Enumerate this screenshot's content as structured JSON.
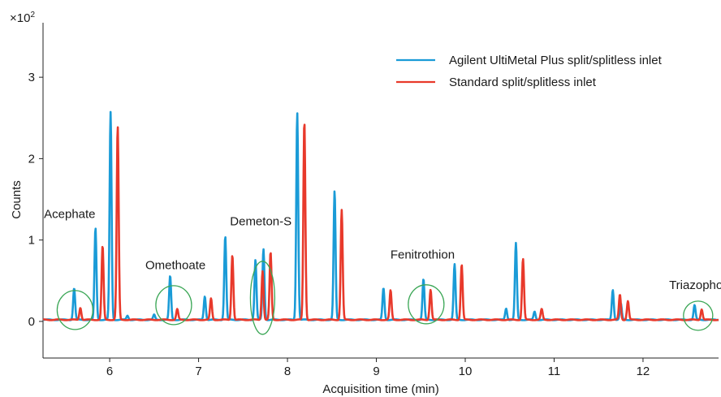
{
  "chart_data": {
    "type": "line",
    "xlabel": "Acquisition time (min)",
    "ylabel": "Counts",
    "y_multiplier_label": "×10",
    "y_multiplier_exp": "2",
    "xlim": [
      5.25,
      12.85
    ],
    "ylim": [
      -0.45,
      3.55
    ],
    "x_ticks": [
      6,
      7,
      8,
      9,
      10,
      11,
      12
    ],
    "y_ticks": [
      0,
      1,
      2,
      3
    ],
    "x_tick_labels": [
      "6",
      "7",
      "8",
      "9",
      "10",
      "11",
      "12"
    ],
    "y_tick_labels": [
      "0",
      "1",
      "2",
      "3"
    ],
    "grid": false,
    "legend_position": "top-right",
    "series": [
      {
        "name": "Agilent UltiMetal Plus split/splitless inlet",
        "color": "#1a9bd7",
        "peaks": [
          {
            "x": 5.6,
            "y": 0.39
          },
          {
            "x": 5.84,
            "y": 1.13
          },
          {
            "x": 6.01,
            "y": 2.55
          },
          {
            "x": 6.2,
            "y": 0.05
          },
          {
            "x": 6.5,
            "y": 0.06
          },
          {
            "x": 6.68,
            "y": 0.54
          },
          {
            "x": 7.07,
            "y": 0.29
          },
          {
            "x": 7.3,
            "y": 1.03
          },
          {
            "x": 7.64,
            "y": 0.74
          },
          {
            "x": 7.73,
            "y": 0.87
          },
          {
            "x": 8.11,
            "y": 2.55
          },
          {
            "x": 8.53,
            "y": 1.58
          },
          {
            "x": 9.08,
            "y": 0.39
          },
          {
            "x": 9.53,
            "y": 0.5
          },
          {
            "x": 9.88,
            "y": 0.68
          },
          {
            "x": 10.46,
            "y": 0.14
          },
          {
            "x": 10.57,
            "y": 0.94
          },
          {
            "x": 10.78,
            "y": 0.1
          },
          {
            "x": 11.66,
            "y": 0.37
          },
          {
            "x": 11.75,
            "y": 0.2
          },
          {
            "x": 12.58,
            "y": 0.18
          }
        ]
      },
      {
        "name": "Standard split/splitless inlet",
        "color": "#e8392b",
        "peaks": [
          {
            "x": 5.67,
            "y": 0.15
          },
          {
            "x": 5.92,
            "y": 0.91
          },
          {
            "x": 6.09,
            "y": 2.38
          },
          {
            "x": 6.76,
            "y": 0.13
          },
          {
            "x": 7.14,
            "y": 0.26
          },
          {
            "x": 7.38,
            "y": 0.8
          },
          {
            "x": 7.72,
            "y": 0.6
          },
          {
            "x": 7.81,
            "y": 0.83
          },
          {
            "x": 8.19,
            "y": 2.45
          },
          {
            "x": 8.61,
            "y": 1.35
          },
          {
            "x": 9.16,
            "y": 0.36
          },
          {
            "x": 9.61,
            "y": 0.37
          },
          {
            "x": 9.96,
            "y": 0.68
          },
          {
            "x": 10.65,
            "y": 0.75
          },
          {
            "x": 10.86,
            "y": 0.13
          },
          {
            "x": 11.74,
            "y": 0.31
          },
          {
            "x": 11.83,
            "y": 0.23
          },
          {
            "x": 12.66,
            "y": 0.13
          }
        ]
      }
    ],
    "annotations": [
      {
        "text": "Acephate",
        "x": 5.55,
        "y": 1.27,
        "circle": {
          "x": 5.61,
          "y": 0.14
        }
      },
      {
        "text": "Omethoate",
        "x": 6.74,
        "y": 0.64,
        "circle": {
          "x": 6.72,
          "y": 0.2
        }
      },
      {
        "text": "Demeton-S",
        "x": 7.7,
        "y": 1.18,
        "circle": {
          "x": 7.72,
          "y": 0.29
        }
      },
      {
        "text": "Fenitrothion",
        "x": 9.52,
        "y": 0.77,
        "circle": {
          "x": 9.56,
          "y": 0.21
        }
      },
      {
        "text": "Triazophos",
        "x": 12.63,
        "y": 0.4,
        "circle": {
          "x": 12.62,
          "y": 0.07
        }
      }
    ],
    "annotation_circle_color": "#3aa655"
  }
}
